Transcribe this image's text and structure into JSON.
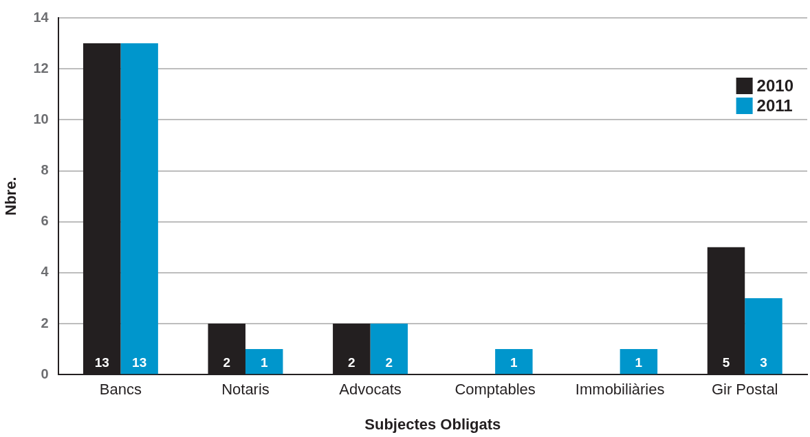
{
  "chart_data": {
    "type": "bar",
    "xlabel": "Subjectes Obligats",
    "ylabel": "Nbre.",
    "categories": [
      "Bancs",
      "Notaris",
      "Advocats",
      "Comptables",
      "Immobiliàries",
      "Gir Postal"
    ],
    "series": [
      {
        "name": "2010",
        "color": "#231f20",
        "values": [
          13,
          2,
          2,
          null,
          null,
          5
        ]
      },
      {
        "name": "2011",
        "color": "#0096cc",
        "values": [
          13,
          1,
          2,
          1,
          1,
          3
        ]
      }
    ],
    "ylim": [
      0,
      14
    ],
    "yticks": [
      0,
      2,
      4,
      6,
      8,
      10,
      12,
      14
    ],
    "grid": "y",
    "legend": "top right",
    "data_labels": true
  }
}
